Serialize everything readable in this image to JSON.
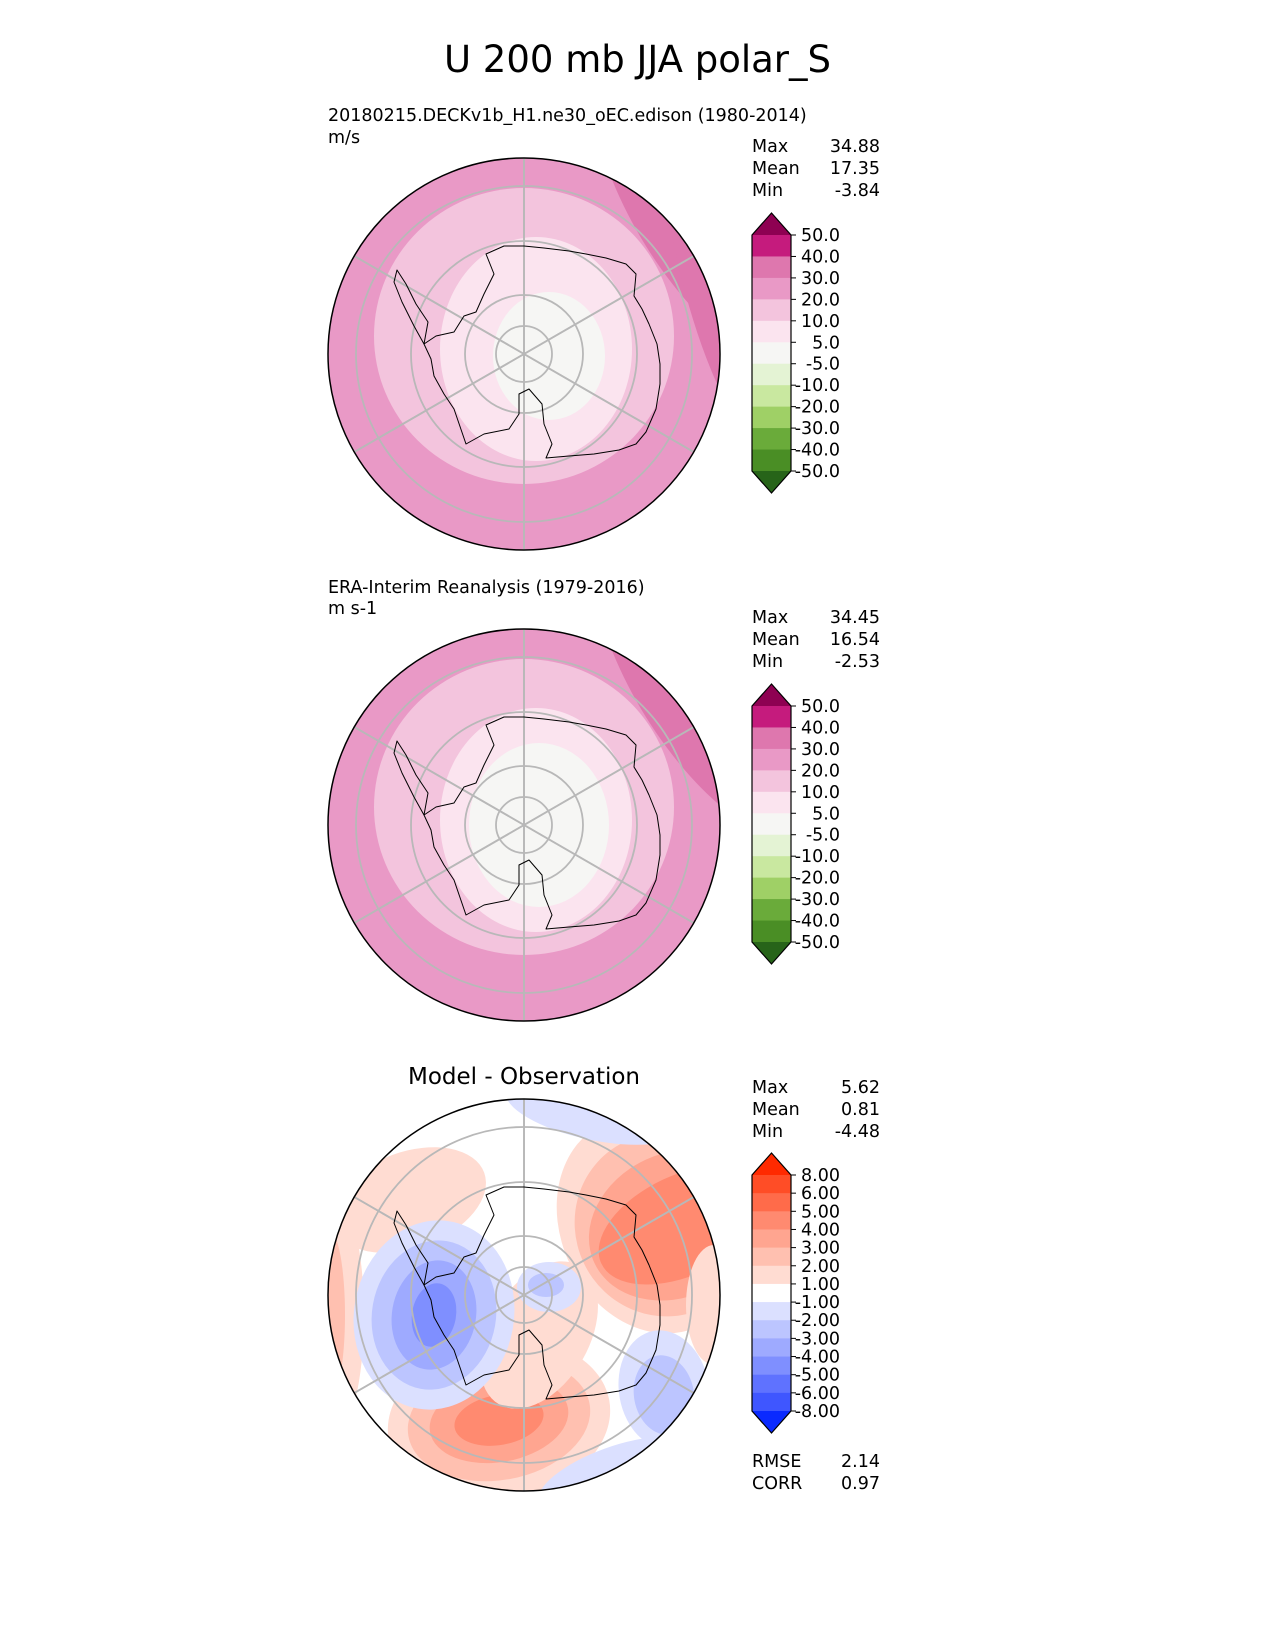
{
  "title": "U 200 mb JJA polar_S",
  "panels": [
    {
      "id": "model",
      "name": "20180215.DECKv1b_H1.ne30_oEC.edison (1980-2014)",
      "units": "m/s",
      "stats": [
        {
          "label": "Max",
          "value": "34.88"
        },
        {
          "label": "Mean",
          "value": "17.35"
        },
        {
          "label": "Min",
          "value": "-3.84"
        }
      ],
      "colorbar": {
        "ticks": [
          "50.0",
          "40.0",
          "30.0",
          "20.0",
          "10.0",
          "5.0",
          "-5.0",
          "-10.0",
          "-20.0",
          "-30.0",
          "-40.0",
          "-50.0"
        ],
        "colors": [
          "#8e0152",
          "#c51b7d",
          "#de77ae",
          "#e999c6",
          "#f3c4dd",
          "#fbe4ef",
          "#f6f6f4",
          "#e4f3d4",
          "#c9e8a0",
          "#9fd066",
          "#6aab3a",
          "#4a8e25",
          "#276419"
        ]
      }
    },
    {
      "id": "obs",
      "name": "ERA-Interim Reanalysis (1979-2016)",
      "units": "m s-1",
      "stats": [
        {
          "label": "Max",
          "value": "34.45"
        },
        {
          "label": "Mean",
          "value": "16.54"
        },
        {
          "label": "Min",
          "value": "-2.53"
        }
      ],
      "colorbar": {
        "ticks": [
          "50.0",
          "40.0",
          "30.0",
          "20.0",
          "10.0",
          "5.0",
          "-5.0",
          "-10.0",
          "-20.0",
          "-30.0",
          "-40.0",
          "-50.0"
        ],
        "colors": [
          "#8e0152",
          "#c51b7d",
          "#de77ae",
          "#e999c6",
          "#f3c4dd",
          "#fbe4ef",
          "#f6f6f4",
          "#e4f3d4",
          "#c9e8a0",
          "#9fd066",
          "#6aab3a",
          "#4a8e25",
          "#276419"
        ]
      }
    },
    {
      "id": "diff",
      "name": "Model - Observation",
      "stats": [
        {
          "label": "Max",
          "value": "5.62"
        },
        {
          "label": "Mean",
          "value": "0.81"
        },
        {
          "label": "Min",
          "value": "-4.48"
        }
      ],
      "metrics": [
        {
          "label": "RMSE",
          "value": "2.14"
        },
        {
          "label": "CORR",
          "value": "0.97"
        }
      ],
      "colorbar": {
        "ticks": [
          "8.00",
          "6.00",
          "5.00",
          "4.00",
          "3.00",
          "2.00",
          "1.00",
          "-1.00",
          "-2.00",
          "-3.00",
          "-4.00",
          "-5.00",
          "-6.00",
          "-8.00"
        ],
        "colors": [
          "#ff2a00",
          "#ff4d26",
          "#ff6b4a",
          "#ff8a70",
          "#ffa590",
          "#ffc0b0",
          "#ffdcd2",
          "#ffffff",
          "#dbe0ff",
          "#bcc5ff",
          "#9eaaff",
          "#7f8fff",
          "#5f72ff",
          "#3f56ff",
          "#0a2aff"
        ]
      }
    }
  ],
  "chart_data": {
    "type": "heatmap",
    "projection": "south polar stereographic",
    "variable": "U 200 mb JJA",
    "grid": true,
    "maps": [
      {
        "panel": "model",
        "range": {
          "max": 34.88,
          "mean": 17.35,
          "min": -3.84
        },
        "colorbar_levels": [
          -50,
          -40,
          -30,
          -20,
          -10,
          -5,
          5,
          10,
          20,
          30,
          40,
          50
        ]
      },
      {
        "panel": "obs",
        "range": {
          "max": 34.45,
          "mean": 16.54,
          "min": -2.53
        },
        "colorbar_levels": [
          -50,
          -40,
          -30,
          -20,
          -10,
          -5,
          5,
          10,
          20,
          30,
          40,
          50
        ]
      },
      {
        "panel": "diff",
        "range": {
          "max": 5.62,
          "mean": 0.81,
          "min": -4.48
        },
        "rmse": 2.14,
        "corr": 0.97,
        "colorbar_levels": [
          -8,
          -6,
          -5,
          -4,
          -3,
          -2,
          -1,
          1,
          2,
          3,
          4,
          5,
          6,
          8
        ]
      }
    ]
  }
}
